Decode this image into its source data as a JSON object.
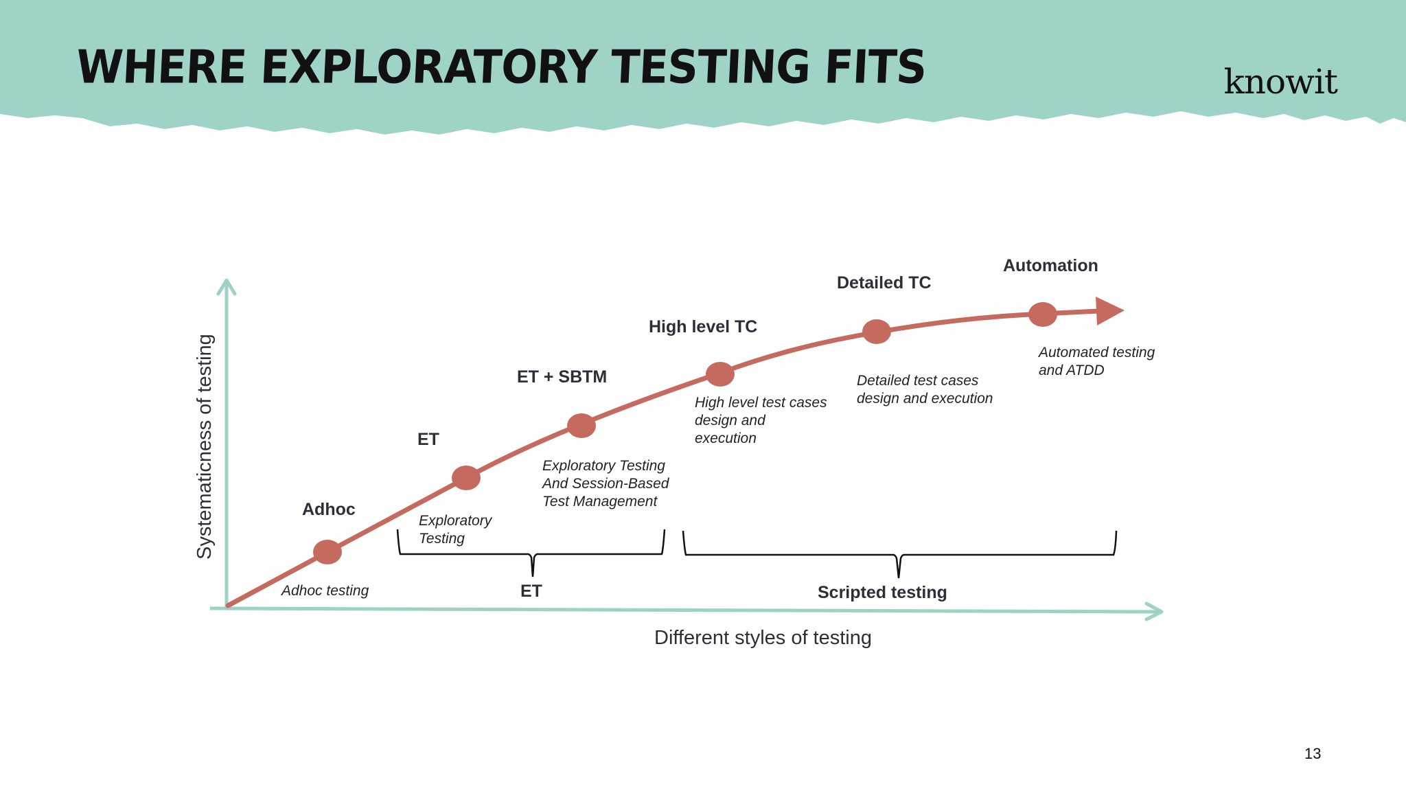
{
  "slide": {
    "title": "WHERE EXPLORATORY TESTING FITS",
    "logo": "knowit",
    "page_number": "13"
  },
  "colors": {
    "header_band": "#a0d3c8",
    "axis": "#9fd1c6",
    "curve": "#c56a5e",
    "text": "#2e2e3a"
  },
  "diagram": {
    "y_axis_label": "Systematicness of testing",
    "x_axis_label": "Different styles of testing",
    "stages": [
      {
        "name": "Adhoc",
        "description": [
          "Adhoc testing"
        ]
      },
      {
        "name": "ET",
        "description": [
          "Exploratory",
          "Testing"
        ]
      },
      {
        "name": "ET + SBTM",
        "description": [
          "Exploratory Testing",
          "And Session-Based",
          "Test Management"
        ]
      },
      {
        "name": "High level TC",
        "description": [
          "High level test cases",
          "design and",
          "execution"
        ]
      },
      {
        "name": "Detailed TC",
        "description": [
          "Detailed test cases",
          "design and execution"
        ]
      },
      {
        "name": "Automation",
        "description": [
          "Automated testing",
          "and ATDD"
        ]
      }
    ],
    "groups": [
      {
        "label": "ET"
      },
      {
        "label": "Scripted testing"
      }
    ]
  }
}
